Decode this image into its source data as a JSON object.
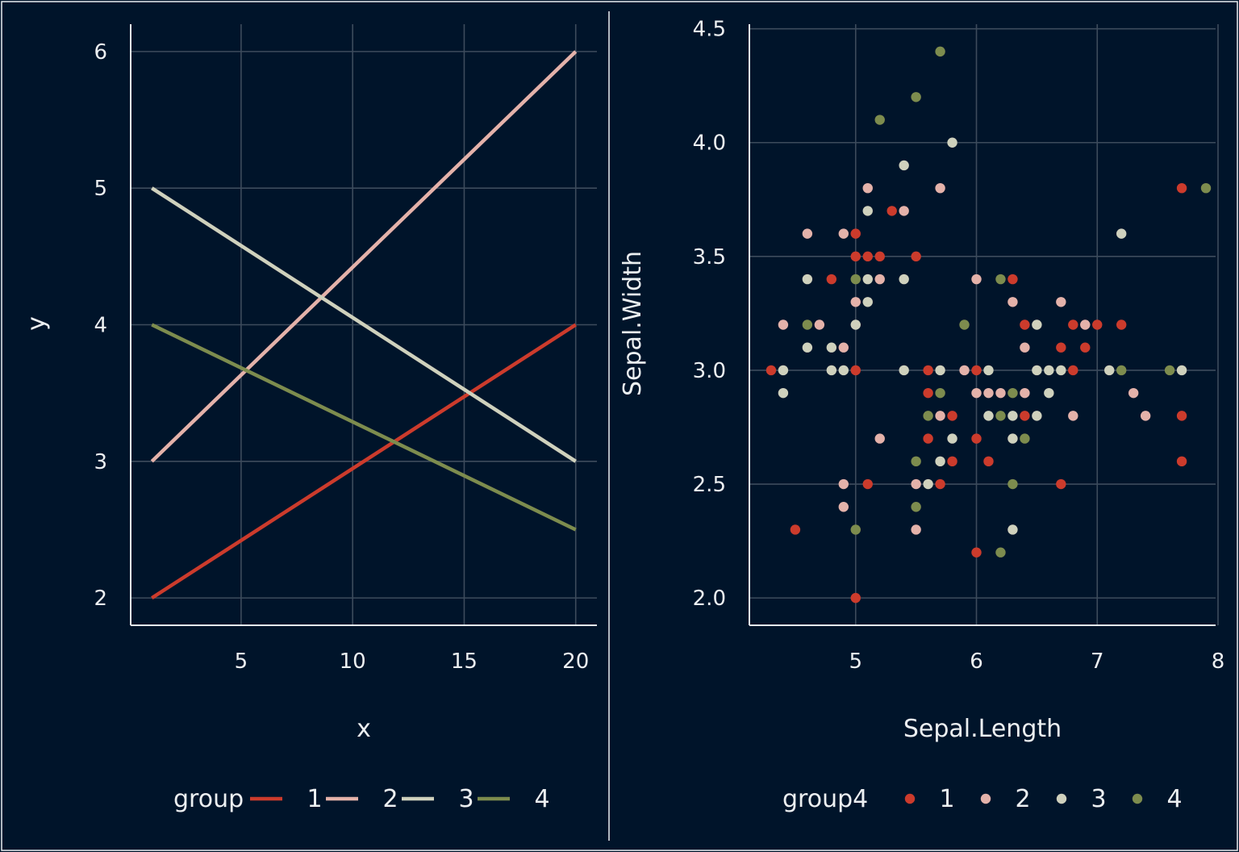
{
  "theme": {
    "background": "#00142a",
    "grid": "#3d4b5c",
    "axis": "#eceff1",
    "text": "#eceff1",
    "palette": [
      "#cc3b2c",
      "#e4b2aa",
      "#cfd1bd",
      "#7d8c4e"
    ]
  },
  "chart_data": [
    {
      "type": "line",
      "title": "",
      "xlabel": "x",
      "ylabel": "y",
      "xlim": [
        0.05,
        20.95
      ],
      "ylim": [
        1.8,
        6.2
      ],
      "x_ticks": [
        5,
        10,
        15,
        20
      ],
      "x_tick_labels": [
        "5",
        "10",
        "15",
        "20"
      ],
      "y_ticks": [
        2,
        3,
        4,
        5,
        6
      ],
      "y_tick_labels": [
        "2",
        "3",
        "4",
        "5",
        "6"
      ],
      "grid": true,
      "legend": {
        "title": "group",
        "placement": "bottom"
      },
      "series": [
        {
          "name": "1",
          "color": "#cc3b2c",
          "x": [
            1,
            20
          ],
          "y": [
            2,
            4
          ]
        },
        {
          "name": "2",
          "color": "#e4b2aa",
          "x": [
            1,
            20
          ],
          "y": [
            3,
            6
          ]
        },
        {
          "name": "3",
          "color": "#cfd1bd",
          "x": [
            1,
            20
          ],
          "y": [
            5,
            3
          ]
        },
        {
          "name": "4",
          "color": "#7d8c4e",
          "x": [
            1,
            20
          ],
          "y": [
            4,
            2.5
          ]
        }
      ]
    },
    {
      "type": "scatter",
      "title": "",
      "xlabel": "Sepal.Length",
      "ylabel": "Sepal.Width",
      "xlim": [
        4.12,
        7.98
      ],
      "ylim": [
        1.88,
        4.52
      ],
      "x_ticks": [
        5,
        6,
        7,
        8
      ],
      "x_tick_labels": [
        "5",
        "6",
        "7",
        "8"
      ],
      "y_ticks": [
        2.0,
        2.5,
        3.0,
        3.5,
        4.0,
        4.5
      ],
      "y_tick_labels": [
        "2.0",
        "2.5",
        "3.0",
        "3.5",
        "4.0",
        "4.5"
      ],
      "grid": true,
      "legend": {
        "title": "group4",
        "placement": "bottom"
      },
      "series": [
        {
          "name": "1",
          "color": "#cc3b2c",
          "points": [
            [
              4.3,
              3.0
            ],
            [
              4.5,
              2.3
            ],
            [
              4.8,
              3.4
            ],
            [
              5.0,
              3.6
            ],
            [
              5.0,
              3.5
            ],
            [
              5.1,
              3.5
            ],
            [
              5.2,
              3.5
            ],
            [
              5.3,
              3.7
            ],
            [
              5.5,
              3.5
            ],
            [
              5.0,
              3.0
            ],
            [
              5.0,
              2.0
            ],
            [
              5.1,
              2.5
            ],
            [
              5.6,
              3.0
            ],
            [
              5.6,
              2.9
            ],
            [
              5.6,
              2.7
            ],
            [
              5.7,
              2.5
            ],
            [
              5.8,
              2.8
            ],
            [
              5.8,
              2.6
            ],
            [
              6.0,
              3.0
            ],
            [
              6.0,
              2.7
            ],
            [
              6.0,
              2.2
            ],
            [
              6.1,
              2.6
            ],
            [
              6.3,
              3.4
            ],
            [
              6.4,
              3.2
            ],
            [
              6.4,
              2.8
            ],
            [
              6.7,
              3.1
            ],
            [
              6.7,
              2.5
            ],
            [
              6.8,
              3.2
            ],
            [
              6.8,
              3.0
            ],
            [
              6.9,
              3.1
            ],
            [
              7.0,
              3.2
            ],
            [
              7.2,
              3.2
            ],
            [
              7.7,
              3.8
            ],
            [
              7.7,
              2.8
            ],
            [
              7.7,
              2.6
            ]
          ]
        },
        {
          "name": "2",
          "color": "#e4b2aa",
          "points": [
            [
              4.4,
              3.2
            ],
            [
              4.6,
              3.6
            ],
            [
              4.7,
              3.2
            ],
            [
              4.9,
              3.6
            ],
            [
              4.9,
              3.1
            ],
            [
              4.9,
              2.5
            ],
            [
              4.9,
              2.4
            ],
            [
              5.0,
              3.3
            ],
            [
              5.1,
              3.8
            ],
            [
              5.2,
              3.4
            ],
            [
              5.2,
              2.7
            ],
            [
              5.4,
              3.7
            ],
            [
              5.5,
              2.5
            ],
            [
              5.5,
              2.3
            ],
            [
              5.7,
              3.8
            ],
            [
              5.7,
              2.8
            ],
            [
              5.9,
              3.0
            ],
            [
              6.0,
              3.4
            ],
            [
              6.0,
              2.9
            ],
            [
              6.1,
              2.9
            ],
            [
              6.2,
              2.9
            ],
            [
              6.3,
              3.3
            ],
            [
              6.4,
              3.1
            ],
            [
              6.4,
              2.9
            ],
            [
              6.7,
              3.3
            ],
            [
              6.8,
              2.8
            ],
            [
              6.9,
              3.2
            ],
            [
              7.3,
              2.9
            ],
            [
              7.4,
              2.8
            ]
          ]
        },
        {
          "name": "3",
          "color": "#cfd1bd",
          "points": [
            [
              4.4,
              3.0
            ],
            [
              4.4,
              2.9
            ],
            [
              4.6,
              3.4
            ],
            [
              4.6,
              3.1
            ],
            [
              4.8,
              3.1
            ],
            [
              4.8,
              3.0
            ],
            [
              4.9,
              3.0
            ],
            [
              5.0,
              3.2
            ],
            [
              5.1,
              3.7
            ],
            [
              5.1,
              3.4
            ],
            [
              5.1,
              3.3
            ],
            [
              5.4,
              3.9
            ],
            [
              5.4,
              3.4
            ],
            [
              5.4,
              3.0
            ],
            [
              5.6,
              2.5
            ],
            [
              5.7,
              3.0
            ],
            [
              5.7,
              2.6
            ],
            [
              5.8,
              4.0
            ],
            [
              5.8,
              2.7
            ],
            [
              6.1,
              3.0
            ],
            [
              6.1,
              2.8
            ],
            [
              6.3,
              2.8
            ],
            [
              6.3,
              2.7
            ],
            [
              6.3,
              2.3
            ],
            [
              6.5,
              3.2
            ],
            [
              6.5,
              3.0
            ],
            [
              6.5,
              2.8
            ],
            [
              6.6,
              3.0
            ],
            [
              6.6,
              2.9
            ],
            [
              6.7,
              3.0
            ],
            [
              7.1,
              3.0
            ],
            [
              7.2,
              3.6
            ],
            [
              7.7,
              3.0
            ]
          ]
        },
        {
          "name": "4",
          "color": "#7d8c4e",
          "points": [
            [
              4.6,
              3.2
            ],
            [
              5.0,
              3.4
            ],
            [
              5.0,
              2.3
            ],
            [
              5.2,
              4.1
            ],
            [
              5.5,
              4.2
            ],
            [
              5.5,
              2.6
            ],
            [
              5.5,
              2.4
            ],
            [
              5.6,
              2.8
            ],
            [
              5.7,
              4.4
            ],
            [
              5.7,
              2.9
            ],
            [
              5.9,
              3.2
            ],
            [
              6.2,
              3.4
            ],
            [
              6.2,
              2.8
            ],
            [
              6.2,
              2.2
            ],
            [
              6.3,
              2.9
            ],
            [
              6.3,
              2.5
            ],
            [
              6.4,
              2.7
            ],
            [
              7.2,
              3.0
            ],
            [
              7.6,
              3.0
            ],
            [
              7.9,
              3.8
            ]
          ]
        }
      ]
    }
  ]
}
